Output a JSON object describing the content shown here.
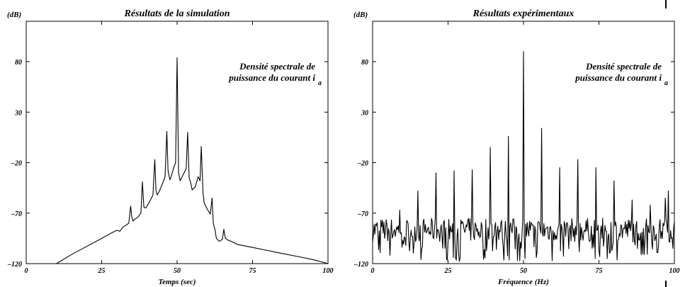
{
  "chart_data": [
    {
      "type": "line",
      "title": "Résultats de la simulation",
      "xlabel": "Temps (sec)",
      "ylabel": "(dB)",
      "xlim": [
        0,
        100
      ],
      "ylim": [
        -120,
        120
      ],
      "xticks": [
        0,
        25,
        50,
        75,
        100
      ],
      "yticks": [
        -120,
        -70,
        -20,
        30,
        80
      ],
      "annotation": {
        "line1": "Densité spectrale de",
        "line2": "puissance du courant i",
        "sub": "a"
      },
      "series": [
        {
          "x": [
            10,
            15,
            20,
            25,
            28,
            30,
            31,
            32,
            33,
            34,
            34.6,
            35,
            35.4,
            36,
            37,
            38,
            38.5,
            39,
            39.6,
            40,
            41,
            42,
            42.6,
            43,
            43.4,
            44,
            45,
            46,
            46.6,
            47,
            47.6,
            48,
            49,
            49.5,
            50,
            50.5,
            51,
            52,
            53,
            53.5,
            54,
            54.5,
            55,
            56,
            57,
            57.6,
            58,
            58.6,
            59,
            60,
            61,
            61.6,
            62,
            62.6,
            63,
            64,
            65,
            65.5,
            66,
            67,
            68,
            70,
            75,
            80,
            85,
            90,
            95,
            100
          ],
          "values": [
            -120,
            -111,
            -103,
            -95,
            -90,
            -87,
            -88,
            -84,
            -82,
            -80,
            -63,
            -74,
            -78,
            -76,
            -74,
            -70,
            -39,
            -64,
            -65,
            -63,
            -58,
            -52,
            -17,
            -48,
            -52,
            -49,
            -42,
            -34,
            11,
            -28,
            -37,
            -34,
            -24,
            -20,
            84,
            -30,
            -38,
            -32,
            -26,
            10,
            -35,
            -40,
            -47,
            -44,
            -34,
            -38,
            -4,
            -50,
            -60,
            -66,
            -71,
            -55,
            -80,
            -87,
            -95,
            -98,
            -96,
            -86,
            -95,
            -97,
            -98,
            -101,
            -104,
            -107,
            -110,
            -113,
            -116,
            -120
          ]
        }
      ]
    },
    {
      "type": "line",
      "title": "Résultats expérimentaux",
      "xlabel": "Fréquence (Hz)",
      "ylabel": "(dB)",
      "xlim": [
        0,
        100
      ],
      "ylim": [
        -120,
        120
      ],
      "xticks": [
        0,
        25,
        50,
        75,
        100
      ],
      "yticks": [
        -120,
        -70,
        -20,
        30,
        80
      ],
      "annotation": {
        "line1": "Densité spectrale de",
        "line2": "puissance du courant i",
        "sub": "a"
      },
      "noise_floor": [
        -118,
        -75
      ],
      "peaks": {
        "x": [
          9,
          15,
          21,
          27,
          33,
          39,
          45,
          50,
          56,
          62,
          68,
          74,
          80,
          86,
          92,
          97,
          98
        ],
        "values": [
          -67,
          -48,
          -30,
          -28,
          -27,
          -5,
          6,
          90,
          14,
          -25,
          -17,
          -25,
          -38,
          -57,
          -62,
          -55,
          -48
        ]
      }
    }
  ]
}
